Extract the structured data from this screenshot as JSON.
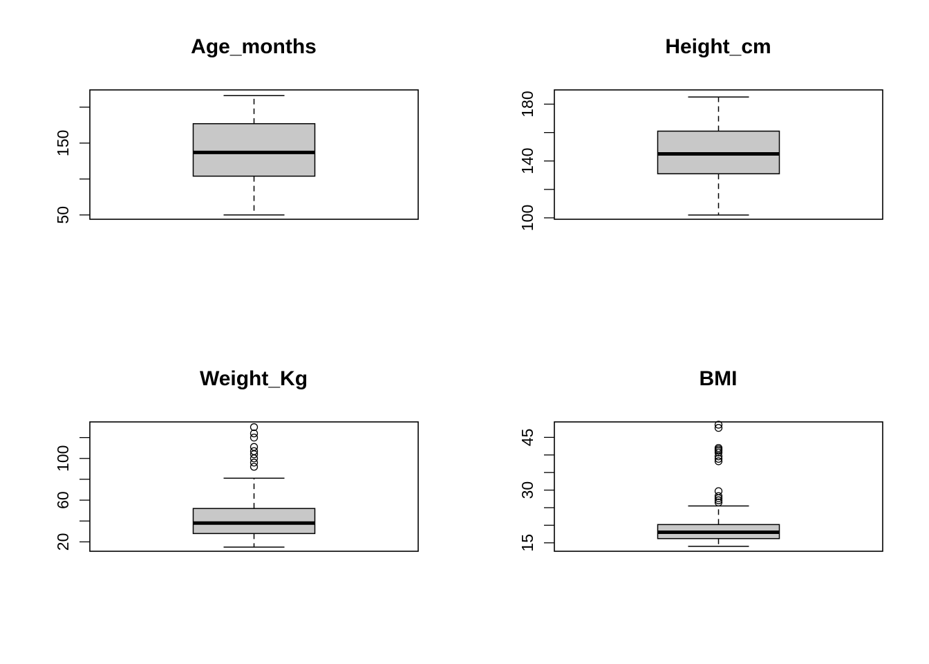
{
  "chart_data": [
    {
      "type": "box",
      "title": "Age_months",
      "ylim": [
        44,
        224
      ],
      "yticks": [
        50,
        100,
        150,
        200
      ],
      "ytick_labels": [
        "50",
        "",
        "150",
        ""
      ],
      "box": {
        "whisker_low": 50,
        "q1": 104,
        "median": 137,
        "q3": 177,
        "whisker_high": 216
      },
      "outliers": []
    },
    {
      "type": "box",
      "title": "Height_cm",
      "ylim": [
        99,
        190
      ],
      "yticks": [
        100,
        120,
        140,
        160,
        180
      ],
      "ytick_labels": [
        "100",
        "",
        "140",
        "",
        "180"
      ],
      "box": {
        "whisker_low": 102,
        "q1": 131,
        "median": 145,
        "q3": 161,
        "whisker_high": 185
      },
      "outliers": []
    },
    {
      "type": "box",
      "title": "Weight_Kg",
      "ylim": [
        11,
        135
      ],
      "yticks": [
        20,
        40,
        60,
        80,
        100,
        120
      ],
      "ytick_labels": [
        "20",
        "",
        "60",
        "",
        "100",
        ""
      ],
      "box": {
        "whisker_low": 15,
        "q1": 28,
        "median": 38,
        "q3": 52,
        "whisker_high": 81
      },
      "outliers": [
        92,
        96,
        100,
        104,
        107,
        111,
        120,
        124,
        130
      ]
    },
    {
      "type": "box",
      "title": "BMI",
      "ylim": [
        12.6,
        49.4
      ],
      "yticks": [
        15,
        20,
        25,
        30,
        35,
        40,
        45
      ],
      "ytick_labels": [
        "15",
        "",
        "",
        "30",
        "",
        "",
        "45"
      ],
      "box": {
        "whisker_low": 14,
        "q1": 16.2,
        "median": 18,
        "q3": 20.2,
        "whisker_high": 25.5
      },
      "outliers": [
        26.5,
        27.1,
        27.7,
        28.3,
        29.7,
        38.2,
        38.9,
        39.6,
        40.7,
        41.2,
        41.6,
        42.0,
        47.7,
        48.6
      ]
    }
  ]
}
